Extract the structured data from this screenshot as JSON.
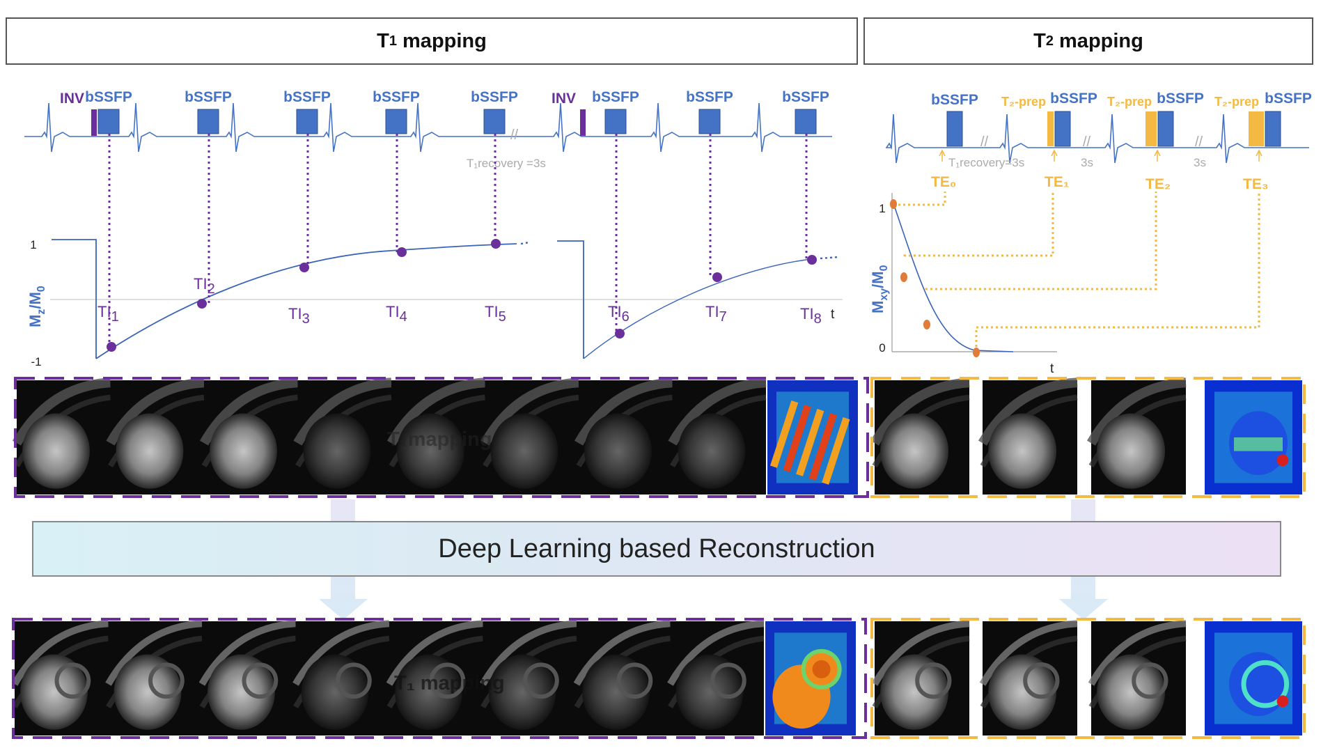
{
  "headers": {
    "t1_prefix": "T",
    "t1_sub": "1",
    "t1_suffix": " mapping",
    "t2_prefix": "T",
    "t2_sub": "2",
    "t2_suffix": " mapping"
  },
  "t1_sequence": {
    "inv_label": "INV",
    "bssfp_label": "bSSFP",
    "recovery_label": "T₁recovery =3s",
    "ti_labels": [
      "TI",
      "TI",
      "TI",
      "TI",
      "TI",
      "TI",
      "TI",
      "TI"
    ],
    "ti_subs": [
      "1",
      "2",
      "3",
      "4",
      "5",
      "6",
      "7",
      "8"
    ],
    "axis": {
      "ylabel": "M",
      "ylabel_sub1": "z",
      "ylabel_mid": "/M",
      "ylabel_sub2": "0",
      "xlabel": "t",
      "ytick_top": "1",
      "ytick_bottom": "-1"
    }
  },
  "t2_sequence": {
    "bssfp_label": "bSSFP",
    "prep_label": "T₂-prep",
    "recovery_label": "T₁recovery=3s",
    "gap_labels": [
      "3s",
      "3s"
    ],
    "te_labels": [
      "TE₀",
      "TE₁",
      "TE₂",
      "TE₃"
    ],
    "axis": {
      "ylabel": "M",
      "ylabel_sub1": "xy",
      "ylabel_mid": "/M",
      "ylabel_sub2": "0",
      "xlabel": "t",
      "ytick_top": "1",
      "ytick_bottom": "0"
    }
  },
  "reconstruction_label": "Deep Learning based Reconstruction",
  "image_rows": {
    "t1_frames": 8,
    "t2_frames": 3,
    "overlay_top": "T₁mapping",
    "overlay_bottom": "T₁ mapping"
  },
  "colors": {
    "purple": "#6a2f9a",
    "blue": "#4472c4",
    "orange": "#f4b942",
    "dot_orange": "#e07b39",
    "curve_blue": "#3a64b8"
  }
}
